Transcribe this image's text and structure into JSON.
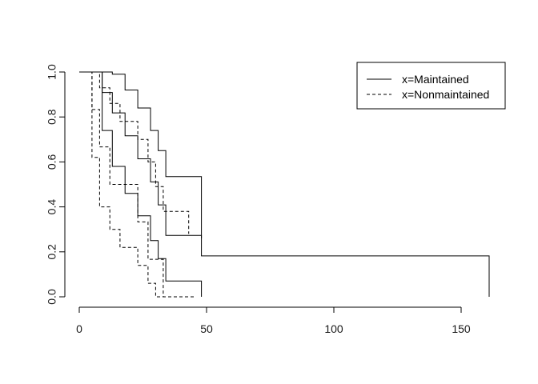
{
  "chart_data": {
    "type": "line",
    "title": "",
    "xlabel": "",
    "ylabel": "",
    "xlim": [
      0,
      161
    ],
    "ylim": [
      0,
      1
    ],
    "x_ticks": [
      0,
      50,
      100,
      150
    ],
    "y_ticks": [
      0.0,
      0.2,
      0.4,
      0.6,
      0.8,
      1.0
    ],
    "x_tick_labels": [
      "0",
      "50",
      "100",
      "150"
    ],
    "y_tick_labels": [
      "0.0",
      "0.2",
      "0.4",
      "0.6",
      "0.8",
      "1.0"
    ],
    "grid": false,
    "legend": {
      "position": "top-right",
      "entries": [
        {
          "label": "x=Maintained",
          "linestyle": "solid"
        },
        {
          "label": "x=Nonmaintained",
          "linestyle": "dashed"
        }
      ]
    },
    "series": [
      {
        "name": "x=Maintained",
        "linestyle": "solid",
        "curves": [
          {
            "role": "estimate",
            "x": [
              0,
              9,
              13,
              18,
              23,
              28,
              31,
              34,
              45,
              48,
              161
            ],
            "y": [
              1.0,
              0.909,
              0.818,
              0.716,
              0.614,
              0.511,
              0.409,
              0.273,
              0.273,
              0.182,
              0.091
            ],
            "end_x": 161,
            "end_y": 0.0
          },
          {
            "role": "upper",
            "x": [
              0,
              13,
              18,
              23,
              28,
              31,
              34,
              45,
              48
            ],
            "y": [
              1.0,
              0.99,
              0.92,
              0.84,
              0.74,
              0.65,
              0.535,
              0.535,
              0.41
            ],
            "end_x": 48,
            "end_y": 0.26
          },
          {
            "role": "lower",
            "x": [
              0,
              9,
              13,
              18,
              23,
              28,
              31,
              34,
              48
            ],
            "y": [
              1.0,
              0.74,
              0.58,
              0.46,
              0.36,
              0.25,
              0.17,
              0.07,
              0.0
            ]
          }
        ]
      },
      {
        "name": "x=Nonmaintained",
        "linestyle": "dashed",
        "curves": [
          {
            "role": "estimate",
            "x": [
              0,
              5,
              8,
              12,
              23,
              27,
              30,
              33,
              43,
              45
            ],
            "y": [
              1.0,
              0.833,
              0.667,
              0.5,
              0.333,
              0.167,
              0.167,
              0.0,
              0.0,
              0.0
            ],
            "end_x": 45,
            "end_y": 0.0
          },
          {
            "role": "upper",
            "x": [
              0,
              8,
              12,
              16,
              23,
              27,
              30,
              33,
              43
            ],
            "y": [
              1.0,
              0.93,
              0.86,
              0.78,
              0.7,
              0.6,
              0.49,
              0.38,
              0.38
            ],
            "end_x": 43,
            "end_y": 0.28
          },
          {
            "role": "lower",
            "x": [
              0,
              5,
              8,
              12,
              16,
              23,
              27,
              30,
              33,
              43
            ],
            "y": [
              1.0,
              0.62,
              0.4,
              0.3,
              0.22,
              0.14,
              0.06,
              0.0,
              0.0,
              0.0
            ]
          }
        ]
      }
    ]
  }
}
